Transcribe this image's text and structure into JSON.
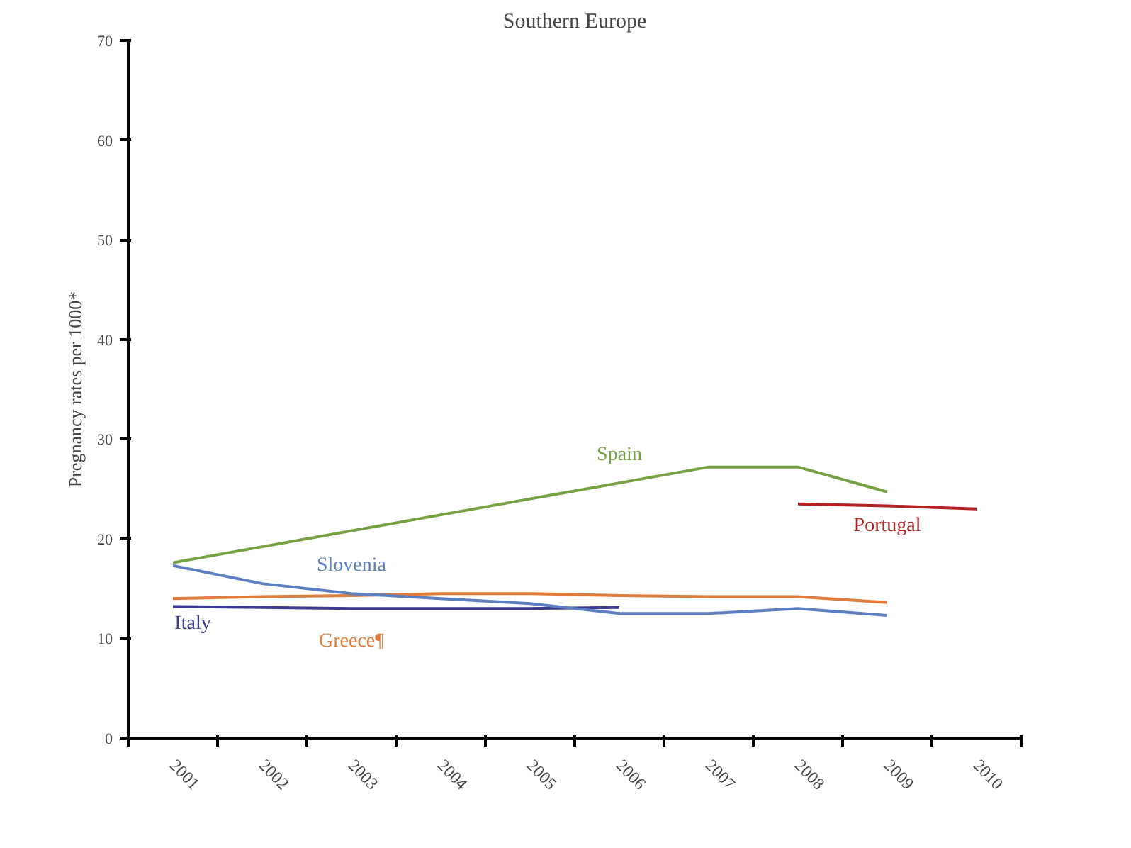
{
  "chart_data": {
    "type": "line",
    "title": "Southern Europe",
    "ylabel": "Pregnancy rates per 1000*",
    "categories": [
      "2001",
      "2002",
      "2003",
      "2004",
      "2005",
      "2006",
      "2007",
      "2008",
      "2009",
      "2010"
    ],
    "ylim": [
      0,
      70
    ],
    "yticks": [
      0,
      10,
      20,
      30,
      40,
      50,
      60,
      70
    ],
    "grid": false,
    "marker": "none",
    "line_style": "solid",
    "series": [
      {
        "name": "Spain",
        "color": "#77a043",
        "values": [
          17.6,
          19.2,
          20.8,
          22.4,
          24.0,
          25.6,
          27.2,
          27.2,
          24.7,
          null
        ]
      },
      {
        "name": "Greece¶",
        "color": "#e07b39",
        "values": [
          14.0,
          14.2,
          14.3,
          14.5,
          14.5,
          14.3,
          14.2,
          14.2,
          13.6,
          null
        ]
      },
      {
        "name": "Italy",
        "color": "#3b3b8f",
        "values": [
          13.2,
          13.1,
          13.0,
          13.0,
          13.0,
          13.1,
          null,
          null,
          null,
          null
        ]
      },
      {
        "name": "Slovenia",
        "color": "#5b7fc0",
        "values": [
          17.3,
          15.5,
          14.5,
          14.0,
          13.5,
          12.5,
          12.5,
          13.0,
          12.3,
          null
        ]
      },
      {
        "name": "Portugal",
        "color": "#b22222",
        "values": [
          null,
          null,
          null,
          null,
          null,
          null,
          null,
          23.5,
          23.3,
          23.0
        ]
      }
    ]
  }
}
